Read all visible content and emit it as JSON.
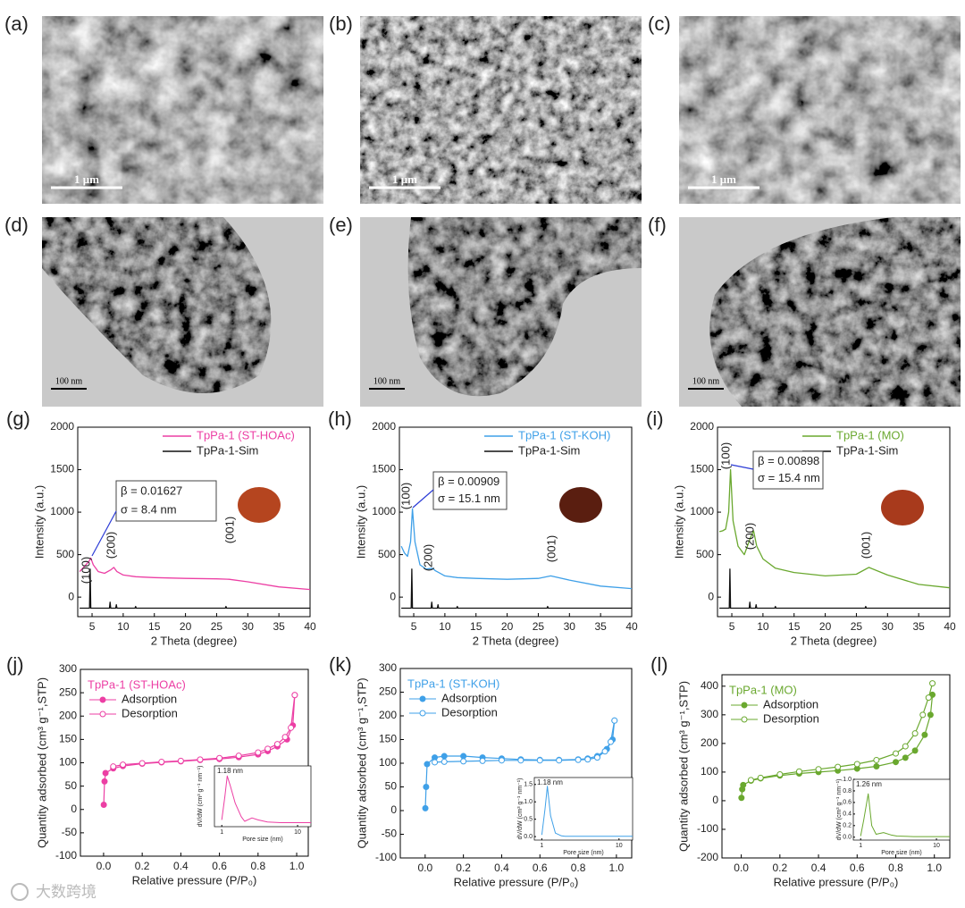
{
  "watermark": "大数跨境",
  "micrographs": [
    {
      "label": "(a)",
      "scale_bar": "1 μm"
    },
    {
      "label": "(b)",
      "scale_bar": "1 μm"
    },
    {
      "label": "(c)",
      "scale_bar": "1 μm"
    },
    {
      "label": "(d)",
      "scale_bar": "100 nm"
    },
    {
      "label": "(e)",
      "scale_bar": "100 nm"
    },
    {
      "label": "(f)",
      "scale_bar": "100 nm"
    }
  ],
  "chart_data": [
    {
      "type": "line",
      "panel": "(g)",
      "xlabel": "2 Theta (degree)",
      "ylabel": "Intensity (a.u.)",
      "xlim": [
        2.7,
        40
      ],
      "xticks": [
        5,
        10,
        15,
        20,
        25,
        30,
        35,
        40
      ],
      "ylim": [
        -230,
        2000
      ],
      "yticks": [
        0,
        500,
        1000,
        1500,
        2000
      ],
      "annotations": [
        "(100)",
        "(200)",
        "(001)",
        "β = 0.01627",
        "σ = 8.4 nm"
      ],
      "series": [
        {
          "name": "TpPa-1 (ST-HOAc)",
          "color": "#ec3fa4",
          "x": [
            3,
            3.5,
            4,
            4.5,
            4.8,
            5.2,
            6,
            7,
            8,
            8.5,
            9,
            10,
            12,
            15,
            20,
            25,
            27,
            30,
            35,
            40
          ],
          "values": [
            300,
            340,
            380,
            420,
            460,
            380,
            300,
            280,
            320,
            350,
            300,
            260,
            240,
            230,
            220,
            215,
            210,
            180,
            120,
            90
          ]
        },
        {
          "name": "TpPa-1-Sim",
          "color": "#111111",
          "x": [
            3,
            4.6,
            4.7,
            4.8,
            7.8,
            7.9,
            8,
            8.8,
            8.9,
            9,
            11.9,
            12,
            12.1,
            26.4,
            26.5,
            26.6,
            40
          ],
          "values": [
            -130,
            -130,
            330,
            -130,
            -130,
            -60,
            -130,
            -130,
            -90,
            -130,
            -130,
            -110,
            -130,
            -130,
            -110,
            -130,
            -130
          ]
        }
      ]
    },
    {
      "type": "line",
      "panel": "(h)",
      "xlabel": "2 Theta (degree)",
      "ylabel": "Intensity (a.u.)",
      "xlim": [
        2.7,
        40
      ],
      "xticks": [
        5,
        10,
        15,
        20,
        25,
        30,
        35,
        40
      ],
      "ylim": [
        -230,
        2000
      ],
      "yticks": [
        0,
        500,
        1000,
        1500,
        2000
      ],
      "annotations": [
        "(100)",
        "(200)",
        "(001)",
        "β = 0.00909",
        "σ = 15.1 nm"
      ],
      "series": [
        {
          "name": "TpPa-1 (ST-KOH)",
          "color": "#3fa0e8",
          "x": [
            3,
            3.5,
            4,
            4.5,
            4.8,
            5.2,
            6,
            7,
            8,
            8.5,
            9,
            10,
            12,
            15,
            20,
            25,
            27,
            30,
            35,
            40
          ],
          "values": [
            600,
            520,
            480,
            650,
            1040,
            650,
            380,
            330,
            340,
            310,
            290,
            250,
            230,
            220,
            210,
            220,
            250,
            200,
            130,
            100
          ]
        },
        {
          "name": "TpPa-1-Sim",
          "color": "#111111",
          "x": [
            3,
            4.6,
            4.7,
            4.8,
            7.8,
            7.9,
            8,
            8.8,
            8.9,
            9,
            11.9,
            12,
            12.1,
            26.4,
            26.5,
            26.6,
            40
          ],
          "values": [
            -130,
            -130,
            330,
            -130,
            -130,
            -60,
            -130,
            -130,
            -90,
            -130,
            -130,
            -110,
            -130,
            -130,
            -110,
            -130,
            -130
          ]
        }
      ]
    },
    {
      "type": "line",
      "panel": "(i)",
      "xlabel": "2 Theta (degree)",
      "ylabel": "Intensity (a.u.)",
      "xlim": [
        2.7,
        40
      ],
      "xticks": [
        5,
        10,
        15,
        20,
        25,
        30,
        35,
        40
      ],
      "ylim": [
        -230,
        2000
      ],
      "yticks": [
        0,
        500,
        1000,
        1500,
        2000
      ],
      "annotations": [
        "(100)",
        "(200)",
        "(001)",
        "β = 0.00898",
        "σ = 15.4 nm"
      ],
      "series": [
        {
          "name": "TpPa-1 (MO)",
          "color": "#6aa82f",
          "x": [
            3,
            3.5,
            4,
            4.5,
            4.8,
            5.2,
            6,
            7,
            8,
            8.5,
            9,
            10,
            12,
            15,
            20,
            25,
            27,
            30,
            35,
            40
          ],
          "values": [
            770,
            780,
            800,
            1000,
            1500,
            900,
            600,
            500,
            700,
            780,
            600,
            450,
            340,
            290,
            250,
            270,
            350,
            260,
            150,
            110
          ]
        },
        {
          "name": "TpPa-1-Sim",
          "color": "#111111",
          "x": [
            3,
            4.6,
            4.7,
            4.8,
            7.8,
            7.9,
            8,
            8.8,
            8.9,
            9,
            11.9,
            12,
            12.1,
            26.4,
            26.5,
            26.6,
            40
          ],
          "values": [
            -130,
            -130,
            330,
            -130,
            -130,
            -60,
            -130,
            -130,
            -90,
            -130,
            -130,
            -110,
            -130,
            -130,
            -110,
            -130,
            -130
          ]
        }
      ]
    },
    {
      "type": "isotherm",
      "panel": "(j)",
      "xlabel": "Relative pressure (P/P₀)",
      "ylabel": "Quantity adsorbed (cm³ g⁻¹,STP)",
      "xlim": [
        -0.12,
        1.06
      ],
      "xticks": [
        {
          "value": 0,
          "label": "0.0"
        },
        0.2,
        0.4,
        0.6,
        0.8,
        {
          "value": 1,
          "label": "1.0"
        }
      ],
      "ylim": [
        -100,
        300
      ],
      "yticks": [
        -100,
        -50,
        0,
        50,
        100,
        150,
        200,
        250,
        300
      ],
      "legend_title": "TpPa-1 (ST-HOAc)",
      "color": "#ec3fa4",
      "series": [
        {
          "name": "Adsorption",
          "marker": "filled",
          "color": "#ec3fa4",
          "x": [
            0.001,
            0.005,
            0.01,
            0.05,
            0.1,
            0.2,
            0.3,
            0.4,
            0.5,
            0.6,
            0.7,
            0.8,
            0.85,
            0.9,
            0.95,
            0.98,
            0.99
          ],
          "values": [
            10,
            60,
            78,
            88,
            93,
            98,
            101,
            103,
            106,
            108,
            112,
            118,
            125,
            135,
            150,
            180,
            245
          ]
        },
        {
          "name": "Desorption",
          "marker": "open",
          "color": "#ec3fa4",
          "x": [
            0.99,
            0.97,
            0.94,
            0.9,
            0.85,
            0.8,
            0.7,
            0.6,
            0.5,
            0.4,
            0.3,
            0.2,
            0.1,
            0.05
          ],
          "values": [
            245,
            175,
            155,
            140,
            130,
            122,
            115,
            110,
            107,
            104,
            102,
            99,
            96,
            92
          ]
        }
      ],
      "inset": {
        "xlabel": "Pore size (nm)",
        "ylabel": "dV/dW (cm³ g⁻¹ nm⁻¹)",
        "annotation": "1.18 nm",
        "xscale": "log",
        "xlim": [
          0.8,
          15
        ],
        "xticks": [
          1,
          10
        ],
        "ylim": [
          -0.05,
          0.85
        ],
        "series": [
          {
            "color": "#ec3fa4",
            "x": [
              1.0,
              1.1,
              1.18,
              1.3,
              1.5,
              1.8,
              2,
              2.5,
              3,
              4,
              6,
              10,
              15
            ],
            "values": [
              0.05,
              0.4,
              0.7,
              0.55,
              0.3,
              0.1,
              0.03,
              0.08,
              0.05,
              0.02,
              0.01,
              0.01,
              0.01
            ]
          }
        ]
      }
    },
    {
      "type": "isotherm",
      "panel": "(k)",
      "xlabel": "Relative pressure (P/P₀)",
      "ylabel": "Quantity adsorbed (cm³ g⁻¹,STP)",
      "xlim": [
        -0.13,
        1.08
      ],
      "xticks": [
        {
          "value": 0,
          "label": "0.0"
        },
        0.2,
        0.4,
        0.6,
        0.8,
        {
          "value": 1,
          "label": "1.0"
        }
      ],
      "ylim": [
        -100,
        300
      ],
      "yticks": [
        -100,
        -50,
        0,
        50,
        100,
        150,
        200,
        250,
        300
      ],
      "legend_title": "TpPa-1 (ST-KOH)",
      "color": "#3fa0e8",
      "series": [
        {
          "name": "Adsorption",
          "marker": "filled",
          "color": "#3fa0e8",
          "x": [
            0.001,
            0.005,
            0.01,
            0.05,
            0.1,
            0.2,
            0.3,
            0.4,
            0.5,
            0.6,
            0.7,
            0.8,
            0.85,
            0.9,
            0.95,
            0.98,
            0.99
          ],
          "values": [
            5,
            50,
            98,
            112,
            115,
            115,
            112,
            110,
            108,
            107,
            107,
            108,
            110,
            115,
            130,
            150,
            190
          ]
        },
        {
          "name": "Desorption",
          "marker": "open",
          "color": "#3fa0e8",
          "x": [
            0.99,
            0.97,
            0.94,
            0.9,
            0.85,
            0.8,
            0.7,
            0.6,
            0.5,
            0.4,
            0.3,
            0.2,
            0.1,
            0.05
          ],
          "values": [
            190,
            145,
            125,
            112,
            108,
            107,
            106,
            106,
            106,
            106,
            105,
            104,
            103,
            102
          ]
        }
      ],
      "inset": {
        "xlabel": "Pore size (nm)",
        "ylabel": "dV/dW (cm³ g⁻¹ nm⁻¹)",
        "annotation": "1.18 nm",
        "xscale": "log",
        "xlim": [
          0.8,
          15
        ],
        "xticks": [
          1,
          10
        ],
        "ylim": [
          -0.1,
          1.7
        ],
        "yticks": [
          {
            "value": 0,
            "label": "0.0"
          },
          0.5,
          {
            "value": 1,
            "label": "1.0"
          },
          1.5
        ],
        "series": [
          {
            "color": "#3fa0e8",
            "x": [
              1.0,
              1.1,
              1.18,
              1.3,
              1.5,
              1.8,
              2,
              3,
              5,
              10,
              15
            ],
            "values": [
              0.05,
              0.8,
              1.45,
              0.6,
              0.1,
              0.02,
              0.01,
              0.01,
              0.01,
              0.01,
              0.01
            ]
          }
        ]
      }
    },
    {
      "type": "isotherm",
      "panel": "(l)",
      "xlabel": "Relative pressure (P/P₀)",
      "ylabel": "Quantity adsorbed (cm³ g⁻¹,STP)",
      "xlim": [
        -0.1,
        1.08
      ],
      "xticks": [
        {
          "value": 0,
          "label": "0.0"
        },
        0.2,
        0.4,
        0.6,
        0.8,
        {
          "value": 1,
          "label": "1.0"
        }
      ],
      "ylim": [
        -200,
        440
      ],
      "yticks": [
        -200,
        -100,
        0,
        100,
        200,
        300,
        400
      ],
      "legend_title": "TpPa-1 (MO)",
      "color": "#6aa82f",
      "series": [
        {
          "name": "Adsorption",
          "marker": "filled",
          "color": "#6aa82f",
          "x": [
            0.001,
            0.005,
            0.01,
            0.05,
            0.1,
            0.2,
            0.3,
            0.4,
            0.5,
            0.6,
            0.7,
            0.8,
            0.85,
            0.9,
            0.95,
            0.98,
            0.99
          ],
          "values": [
            10,
            40,
            55,
            70,
            78,
            88,
            95,
            100,
            105,
            112,
            120,
            135,
            150,
            175,
            230,
            300,
            370
          ]
        },
        {
          "name": "Desorption",
          "marker": "open",
          "color": "#6aa82f",
          "x": [
            0.99,
            0.97,
            0.94,
            0.9,
            0.85,
            0.8,
            0.7,
            0.6,
            0.5,
            0.4,
            0.3,
            0.2,
            0.1,
            0.05
          ],
          "values": [
            410,
            360,
            300,
            235,
            190,
            165,
            142,
            128,
            118,
            110,
            102,
            92,
            80,
            72
          ]
        }
      ],
      "inset": {
        "xlabel": "Pore size (nm)",
        "ylabel": "dV/dW (cm³ g⁻¹ nm⁻¹)",
        "annotation": "1.26 nm",
        "xscale": "log",
        "xlim": [
          0.8,
          15
        ],
        "xticks": [
          1,
          10
        ],
        "ylim": [
          -0.05,
          1.0
        ],
        "yticks": [
          {
            "value": 0,
            "label": "0.0"
          },
          0.2,
          0.4,
          0.6,
          0.8,
          {
            "value": 1,
            "label": "1.0"
          }
        ],
        "series": [
          {
            "color": "#6aa82f",
            "x": [
              1.0,
              1.1,
              1.26,
              1.4,
              1.6,
              2,
              2.5,
              3,
              5,
              10,
              15
            ],
            "values": [
              0.02,
              0.3,
              0.75,
              0.2,
              0.05,
              0.08,
              0.04,
              0.02,
              0.01,
              0.01,
              0.01
            ]
          }
        ]
      }
    }
  ]
}
